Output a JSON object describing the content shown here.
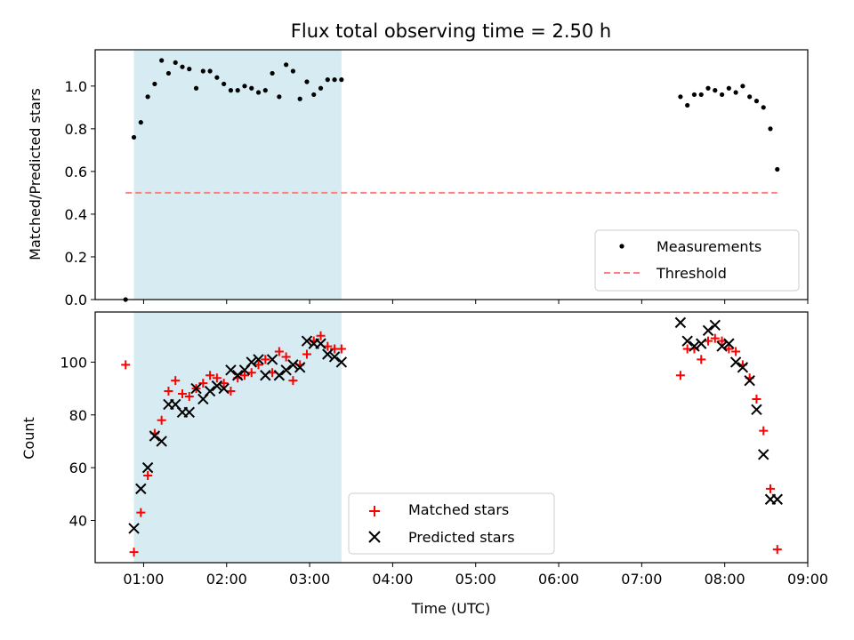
{
  "chart_data": [
    {
      "type": "scatter",
      "title": "Flux total observing time = 2.50 h",
      "xlabel": "",
      "ylabel": "Matched/Predicted stars",
      "xlim": [
        "00:25",
        "09:00"
      ],
      "ylim": [
        0,
        1.17
      ],
      "yticks": [
        0.0,
        0.2,
        0.4,
        0.6,
        0.8,
        1.0
      ],
      "ytick_labels": [
        "0.0",
        "0.2",
        "0.4",
        "0.6",
        "0.8",
        "1.0"
      ],
      "grid": false,
      "legend_position": "lower-right",
      "highlight_span": {
        "start": "00:53",
        "end": "03:23",
        "color": "#add8e6"
      },
      "series": [
        {
          "name": "Measurements",
          "marker": "dot",
          "color": "#000000",
          "x": [
            "00:47",
            "00:53",
            "00:58",
            "01:03",
            "01:08",
            "01:13",
            "01:18",
            "01:23",
            "01:28",
            "01:33",
            "01:38",
            "01:43",
            "01:48",
            "01:53",
            "01:58",
            "02:03",
            "02:08",
            "02:13",
            "02:18",
            "02:23",
            "02:28",
            "02:33",
            "02:38",
            "02:43",
            "02:48",
            "02:53",
            "02:58",
            "03:03",
            "03:08",
            "03:13",
            "03:18",
            "03:23",
            "07:28",
            "07:33",
            "07:38",
            "07:43",
            "07:48",
            "07:53",
            "07:58",
            "08:03",
            "08:08",
            "08:13",
            "08:18",
            "08:23",
            "08:28",
            "08:33",
            "08:38"
          ],
          "y": [
            0.0,
            0.76,
            0.83,
            0.95,
            1.01,
            1.12,
            1.06,
            1.11,
            1.09,
            1.08,
            0.99,
            1.07,
            1.07,
            1.04,
            1.01,
            0.98,
            0.98,
            1.0,
            0.99,
            0.97,
            0.98,
            1.06,
            0.95,
            1.1,
            1.07,
            0.94,
            1.02,
            0.96,
            0.99,
            1.03,
            1.03,
            1.03,
            0.95,
            0.91,
            0.96,
            0.96,
            0.99,
            0.98,
            0.96,
            0.99,
            0.97,
            1.0,
            0.95,
            0.93,
            0.9,
            0.8,
            0.61
          ]
        },
        {
          "name": "Threshold",
          "style": "dashed",
          "color": "#ff7f7f",
          "x": [
            "00:47",
            "08:38"
          ],
          "y": [
            0.5,
            0.5
          ]
        }
      ]
    },
    {
      "type": "scatter",
      "title": "",
      "xlabel": "Time (UTC)",
      "ylabel": "Count",
      "xlim": [
        "00:25",
        "09:00"
      ],
      "ylim": [
        24,
        119
      ],
      "xticks": [
        "01:00",
        "02:00",
        "03:00",
        "04:00",
        "05:00",
        "06:00",
        "07:00",
        "08:00",
        "09:00"
      ],
      "yticks": [
        40,
        60,
        80,
        100
      ],
      "ytick_labels": [
        "40",
        "60",
        "80",
        "100"
      ],
      "grid": false,
      "legend_position": "lower-center",
      "highlight_span": {
        "start": "00:53",
        "end": "03:23",
        "color": "#add8e6"
      },
      "series": [
        {
          "name": "Matched stars",
          "marker": "plus",
          "color": "#ff0000",
          "x": [
            "00:47",
            "00:53",
            "00:58",
            "01:03",
            "01:08",
            "01:13",
            "01:18",
            "01:23",
            "01:28",
            "01:33",
            "01:38",
            "01:43",
            "01:48",
            "01:53",
            "01:58",
            "02:03",
            "02:08",
            "02:13",
            "02:18",
            "02:23",
            "02:28",
            "02:33",
            "02:38",
            "02:43",
            "02:48",
            "02:53",
            "02:58",
            "03:03",
            "03:08",
            "03:13",
            "03:18",
            "03:23",
            "07:28",
            "07:33",
            "07:38",
            "07:43",
            "07:48",
            "07:53",
            "07:58",
            "08:03",
            "08:08",
            "08:13",
            "08:18",
            "08:23",
            "08:28",
            "08:33",
            "08:38"
          ],
          "y": [
            99,
            28,
            43,
            57,
            73,
            78,
            89,
            93,
            88,
            87,
            90,
            92,
            95,
            94,
            92,
            89,
            94,
            95,
            96,
            99,
            101,
            96,
            104,
            102,
            93,
            99,
            103,
            108,
            110,
            106,
            105,
            105,
            95,
            105,
            105,
            101,
            108,
            109,
            108,
            105,
            104,
            99,
            94,
            86,
            74,
            52,
            29
          ]
        },
        {
          "name": "Predicted stars",
          "marker": "x",
          "color": "#000000",
          "x": [
            "00:53",
            "00:58",
            "01:03",
            "01:08",
            "01:13",
            "01:18",
            "01:23",
            "01:28",
            "01:33",
            "01:38",
            "01:43",
            "01:48",
            "01:53",
            "01:58",
            "02:03",
            "02:08",
            "02:13",
            "02:18",
            "02:23",
            "02:28",
            "02:33",
            "02:38",
            "02:43",
            "02:48",
            "02:53",
            "02:58",
            "03:03",
            "03:08",
            "03:13",
            "03:18",
            "03:23",
            "07:28",
            "07:33",
            "07:38",
            "07:43",
            "07:48",
            "07:53",
            "07:58",
            "08:03",
            "08:08",
            "08:13",
            "08:18",
            "08:23",
            "08:28",
            "08:33",
            "08:38"
          ],
          "y": [
            37,
            52,
            60,
            72,
            70,
            84,
            84,
            81,
            81,
            90,
            86,
            89,
            91,
            90,
            97,
            95,
            97,
            100,
            101,
            95,
            101,
            95,
            97,
            99,
            98,
            108,
            107,
            107,
            103,
            102,
            100,
            115,
            108,
            106,
            107,
            112,
            114,
            106,
            107,
            100,
            98,
            93,
            82,
            65,
            48,
            48
          ]
        }
      ]
    }
  ]
}
